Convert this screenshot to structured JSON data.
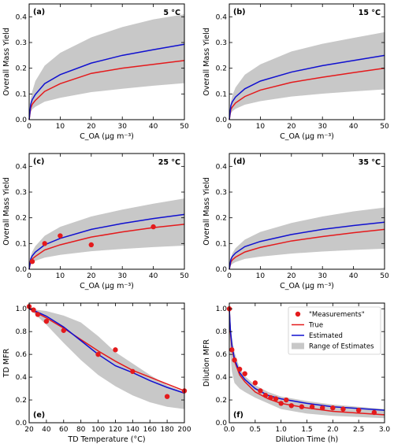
{
  "colors": {
    "band": "#c8c8c8",
    "true": "#e41a1c",
    "estimated": "#1010d0",
    "measurement": "#e41a1c"
  },
  "chart_data": [
    {
      "id": "a",
      "type": "line",
      "panel_label": "(a)",
      "temp_label": "5 °C",
      "xlabel": "C_OA (µg m⁻³)",
      "ylabel": "Overall Mass Yield",
      "xlim": [
        0,
        50
      ],
      "ylim": [
        0,
        0.45
      ],
      "xticks": [
        0,
        10,
        20,
        30,
        40,
        50
      ],
      "yticks": [
        0.0,
        0.1,
        0.2,
        0.3,
        0.4
      ],
      "x": [
        0,
        0.5,
        1,
        2,
        5,
        10,
        20,
        30,
        40,
        50
      ],
      "series": [
        {
          "name": "True",
          "values": [
            0,
            0.045,
            0.06,
            0.075,
            0.11,
            0.14,
            0.18,
            0.2,
            0.215,
            0.23
          ]
        },
        {
          "name": "Estimated",
          "values": [
            0,
            0.06,
            0.078,
            0.098,
            0.14,
            0.175,
            0.22,
            0.25,
            0.272,
            0.293
          ]
        },
        {
          "name": "Range of Estimates",
          "lower": [
            0,
            0.03,
            0.04,
            0.05,
            0.07,
            0.085,
            0.107,
            0.12,
            0.132,
            0.142
          ],
          "upper": [
            0,
            0.08,
            0.11,
            0.15,
            0.21,
            0.26,
            0.32,
            0.36,
            0.39,
            0.41
          ]
        }
      ],
      "points": []
    },
    {
      "id": "b",
      "type": "line",
      "panel_label": "(b)",
      "temp_label": "15 °C",
      "xlabel": "C_OA (µg m⁻³)",
      "ylabel": "Overall Mass Yield",
      "xlim": [
        0,
        50
      ],
      "ylim": [
        0,
        0.45
      ],
      "xticks": [
        0,
        10,
        20,
        30,
        40,
        50
      ],
      "yticks": [
        0.0,
        0.1,
        0.2,
        0.3,
        0.4
      ],
      "x": [
        0,
        0.5,
        1,
        2,
        5,
        10,
        20,
        30,
        40,
        50
      ],
      "series": [
        {
          "name": "True",
          "values": [
            0,
            0.04,
            0.05,
            0.065,
            0.09,
            0.115,
            0.145,
            0.165,
            0.183,
            0.2
          ]
        },
        {
          "name": "Estimated",
          "values": [
            0,
            0.055,
            0.07,
            0.088,
            0.12,
            0.15,
            0.185,
            0.21,
            0.23,
            0.25
          ]
        },
        {
          "name": "Range of Estimates",
          "lower": [
            0,
            0.025,
            0.033,
            0.042,
            0.058,
            0.072,
            0.09,
            0.101,
            0.11,
            0.118
          ],
          "upper": [
            0,
            0.07,
            0.095,
            0.125,
            0.175,
            0.215,
            0.265,
            0.295,
            0.318,
            0.34
          ]
        }
      ],
      "points": []
    },
    {
      "id": "c",
      "type": "line",
      "panel_label": "(c)",
      "temp_label": "25 °C",
      "xlabel": "C_OA (µg m⁻³)",
      "ylabel": "Overall Mass Yield",
      "xlim": [
        0,
        50
      ],
      "ylim": [
        0,
        0.45
      ],
      "xticks": [
        0,
        10,
        20,
        30,
        40,
        50
      ],
      "yticks": [
        0.0,
        0.1,
        0.2,
        0.3,
        0.4
      ],
      "x": [
        0,
        0.5,
        1,
        2,
        5,
        10,
        20,
        30,
        40,
        50
      ],
      "series": [
        {
          "name": "True",
          "values": [
            0,
            0.03,
            0.04,
            0.05,
            0.075,
            0.095,
            0.125,
            0.145,
            0.162,
            0.175
          ]
        },
        {
          "name": "Estimated",
          "values": [
            0,
            0.04,
            0.052,
            0.067,
            0.095,
            0.12,
            0.155,
            0.178,
            0.197,
            0.213
          ]
        },
        {
          "name": "Range of Estimates",
          "lower": [
            0,
            0.018,
            0.025,
            0.033,
            0.045,
            0.056,
            0.07,
            0.079,
            0.086,
            0.092
          ],
          "upper": [
            0,
            0.05,
            0.068,
            0.09,
            0.13,
            0.165,
            0.205,
            0.232,
            0.255,
            0.275
          ]
        }
      ],
      "points": [
        {
          "x": 1,
          "y": 0.03
        },
        {
          "x": 5,
          "y": 0.1
        },
        {
          "x": 10,
          "y": 0.13
        },
        {
          "x": 20,
          "y": 0.095
        },
        {
          "x": 40,
          "y": 0.165
        }
      ]
    },
    {
      "id": "d",
      "type": "line",
      "panel_label": "(d)",
      "temp_label": "35 °C",
      "xlabel": "C_OA (µg m⁻³)",
      "ylabel": "Overall Mass Yield",
      "xlim": [
        0,
        50
      ],
      "ylim": [
        0,
        0.45
      ],
      "xticks": [
        0,
        10,
        20,
        30,
        40,
        50
      ],
      "yticks": [
        0.0,
        0.1,
        0.2,
        0.3,
        0.4
      ],
      "x": [
        0,
        0.5,
        1,
        2,
        5,
        10,
        20,
        30,
        40,
        50
      ],
      "series": [
        {
          "name": "True",
          "values": [
            0,
            0.028,
            0.037,
            0.047,
            0.067,
            0.085,
            0.11,
            0.127,
            0.142,
            0.155
          ]
        },
        {
          "name": "Estimated",
          "values": [
            0,
            0.038,
            0.05,
            0.063,
            0.088,
            0.108,
            0.135,
            0.155,
            0.17,
            0.183
          ]
        },
        {
          "name": "Range of Estimates",
          "lower": [
            0,
            0.015,
            0.021,
            0.028,
            0.04,
            0.049,
            0.061,
            0.069,
            0.075,
            0.08
          ],
          "upper": [
            0,
            0.045,
            0.062,
            0.082,
            0.115,
            0.145,
            0.18,
            0.205,
            0.225,
            0.24
          ]
        }
      ],
      "points": []
    },
    {
      "id": "e",
      "type": "line",
      "panel_label": "(e)",
      "temp_label": "",
      "xlabel": "TD Temperature (°C)",
      "ylabel": "TD MFR",
      "xlim": [
        20,
        200
      ],
      "ylim": [
        0,
        1.05
      ],
      "xticks": [
        20,
        40,
        60,
        80,
        100,
        120,
        140,
        160,
        180,
        200
      ],
      "yticks": [
        0.0,
        0.2,
        0.4,
        0.6,
        0.8,
        1.0
      ],
      "x": [
        20,
        30,
        40,
        60,
        80,
        100,
        120,
        140,
        160,
        180,
        200
      ],
      "series": [
        {
          "name": "True",
          "values": [
            1.0,
            0.96,
            0.92,
            0.83,
            0.73,
            0.63,
            0.54,
            0.46,
            0.4,
            0.34,
            0.28
          ]
        },
        {
          "name": "Estimated",
          "values": [
            1.0,
            0.97,
            0.935,
            0.84,
            0.72,
            0.6,
            0.5,
            0.44,
            0.37,
            0.31,
            0.26
          ]
        },
        {
          "name": "Range of Estimates",
          "lower": [
            1.0,
            0.93,
            0.86,
            0.7,
            0.55,
            0.42,
            0.32,
            0.24,
            0.18,
            0.14,
            0.12
          ],
          "upper": [
            1.0,
            0.99,
            0.98,
            0.94,
            0.88,
            0.76,
            0.62,
            0.52,
            0.42,
            0.33,
            0.27
          ]
        }
      ],
      "points": [
        {
          "x": 20,
          "y": 1.02
        },
        {
          "x": 25,
          "y": 0.99
        },
        {
          "x": 30,
          "y": 0.95
        },
        {
          "x": 40,
          "y": 0.89
        },
        {
          "x": 60,
          "y": 0.81
        },
        {
          "x": 100,
          "y": 0.6
        },
        {
          "x": 120,
          "y": 0.64
        },
        {
          "x": 140,
          "y": 0.45
        },
        {
          "x": 180,
          "y": 0.23
        },
        {
          "x": 200,
          "y": 0.28
        }
      ]
    },
    {
      "id": "f",
      "type": "line",
      "panel_label": "(f)",
      "temp_label": "",
      "xlabel": "Dilution Time (h)",
      "ylabel": "Dilution MFR",
      "xlim": [
        0,
        3
      ],
      "ylim": [
        0,
        1.05
      ],
      "xticks": [
        0.0,
        0.5,
        1.0,
        1.5,
        2.0,
        2.5,
        3.0
      ],
      "yticks": [
        0.0,
        0.2,
        0.4,
        0.6,
        0.8,
        1.0
      ],
      "x": [
        0,
        0.02,
        0.05,
        0.1,
        0.2,
        0.3,
        0.5,
        0.75,
        1.0,
        1.5,
        2.0,
        2.5,
        3.0
      ],
      "series": [
        {
          "name": "True",
          "values": [
            1.0,
            0.8,
            0.66,
            0.54,
            0.42,
            0.36,
            0.27,
            0.21,
            0.17,
            0.13,
            0.1,
            0.085,
            0.07
          ]
        },
        {
          "name": "Estimated",
          "values": [
            1.0,
            0.82,
            0.68,
            0.56,
            0.44,
            0.38,
            0.3,
            0.24,
            0.21,
            0.17,
            0.14,
            0.125,
            0.11
          ]
        },
        {
          "name": "Range of Estimates",
          "lower": [
            1.0,
            0.6,
            0.45,
            0.35,
            0.3,
            0.27,
            0.22,
            0.17,
            0.12,
            0.08,
            0.06,
            0.05,
            0.04
          ],
          "upper": [
            1.0,
            0.88,
            0.75,
            0.62,
            0.48,
            0.41,
            0.33,
            0.27,
            0.23,
            0.19,
            0.16,
            0.14,
            0.12
          ]
        }
      ],
      "points": [
        {
          "x": 0,
          "y": 1.0
        },
        {
          "x": 0.05,
          "y": 0.64
        },
        {
          "x": 0.1,
          "y": 0.55
        },
        {
          "x": 0.2,
          "y": 0.47
        },
        {
          "x": 0.3,
          "y": 0.43
        },
        {
          "x": 0.5,
          "y": 0.35
        },
        {
          "x": 0.6,
          "y": 0.28
        },
        {
          "x": 0.7,
          "y": 0.24
        },
        {
          "x": 0.8,
          "y": 0.22
        },
        {
          "x": 0.9,
          "y": 0.21
        },
        {
          "x": 1.0,
          "y": 0.17
        },
        {
          "x": 1.1,
          "y": 0.2
        },
        {
          "x": 1.2,
          "y": 0.15
        },
        {
          "x": 1.4,
          "y": 0.14
        },
        {
          "x": 1.6,
          "y": 0.14
        },
        {
          "x": 1.8,
          "y": 0.13
        },
        {
          "x": 2.0,
          "y": 0.13
        },
        {
          "x": 2.2,
          "y": 0.12
        },
        {
          "x": 2.5,
          "y": 0.11
        },
        {
          "x": 2.8,
          "y": 0.09
        }
      ],
      "legend": {
        "position": "upper-right",
        "entries": [
          "\"Measurements\"",
          "True",
          "Estimated",
          "Range of Estimates"
        ]
      }
    }
  ]
}
